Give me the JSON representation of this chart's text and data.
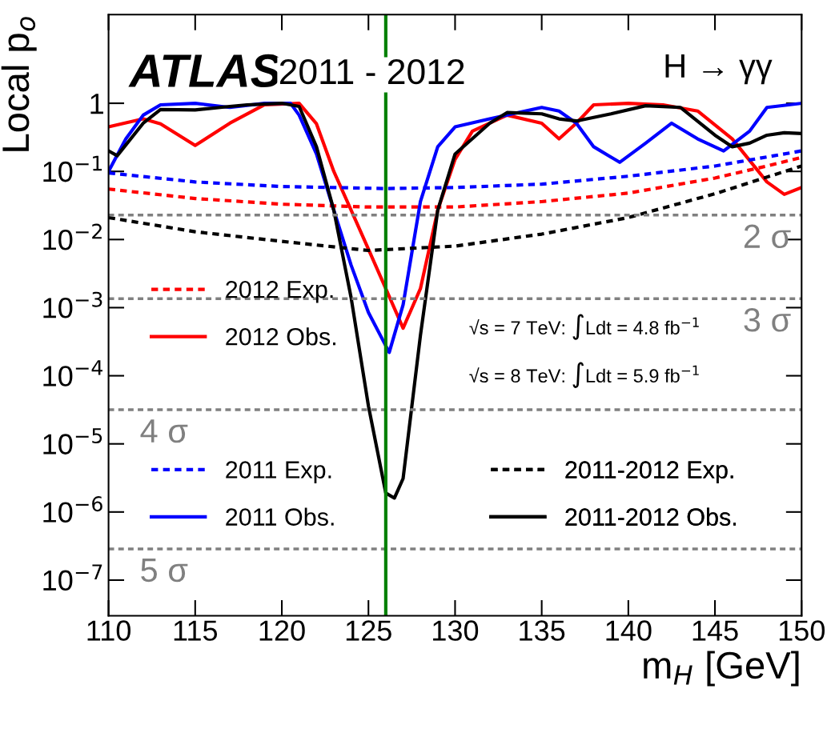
{
  "chart_data": {
    "type": "line",
    "xlabel": "m$_{H}$ [GeV]",
    "ylabel": "Local p$_{o}$",
    "annotations": [
      "ATLAS",
      "2011 - 2012",
      "H → γγ",
      "√s = 7 TeV: ∫Ldt = 4.8 fb$^{−1}$",
      "√s = 8 TeV: ∫Ldt = 5.9 fb$^{−1}$"
    ],
    "log": "y",
    "grid": false,
    "legend": "bottom",
    "marker": "none",
    "xlim": [
      110,
      150
    ],
    "xticks": [
      110,
      115,
      120,
      125,
      130,
      135,
      140,
      145,
      150
    ],
    "ylim": [
      3e-08,
      20
    ],
    "yticks": [
      1,
      {
        "value": 0.1,
        "label": "10$^{−1}$"
      },
      {
        "value": 0.01,
        "label": "10$^{−2}$"
      },
      {
        "value": 0.001,
        "label": "10$^{−3}$"
      },
      {
        "value": 0.0001,
        "label": "10$^{−4}$"
      },
      {
        "value": 1e-05,
        "label": "10$^{−5}$"
      },
      {
        "value": 1e-06,
        "label": "10$^{−6}$"
      },
      {
        "value": 1e-07,
        "label": "10$^{−7}$"
      }
    ],
    "series": [
      {
        "name": "2012 Exp.",
        "color": "#ff0000",
        "line_style": "dotted",
        "x": [
          110,
          115,
          120,
          125,
          130,
          135,
          140,
          145,
          148,
          150
        ],
        "values": [
          0.055,
          0.04,
          0.033,
          0.03,
          0.03,
          0.036,
          0.048,
          0.08,
          0.12,
          0.16
        ]
      },
      {
        "name": "2012 Obs.",
        "color": "#ff0000",
        "line_style": "solid",
        "x": [
          110,
          112,
          113,
          115,
          117,
          119,
          121,
          122,
          123,
          124,
          125,
          126,
          127,
          128,
          129,
          130,
          131,
          133,
          135,
          136,
          137,
          138,
          140,
          142,
          144,
          146,
          148,
          149,
          150
        ],
        "values": [
          0.45,
          0.59,
          0.5,
          0.24,
          0.51,
          0.95,
          1,
          0.5,
          0.1,
          0.027,
          0.0072,
          0.0019,
          0.0005,
          0.0019,
          0.027,
          0.15,
          0.39,
          0.67,
          0.51,
          0.3,
          0.51,
          0.95,
          1,
          0.95,
          0.77,
          0.3,
          0.07,
          0.046,
          0.058
        ]
      },
      {
        "name": "2011 Exp.",
        "color": "#0000ff",
        "line_style": "dotted",
        "x": [
          110,
          115,
          120,
          126,
          130,
          135,
          140,
          145,
          150
        ],
        "values": [
          0.095,
          0.07,
          0.06,
          0.056,
          0.058,
          0.065,
          0.085,
          0.12,
          0.2
        ]
      },
      {
        "name": "2011 Obs.",
        "color": "#0000ff",
        "line_style": "solid",
        "x": [
          110,
          111,
          112,
          113,
          115,
          117,
          119,
          120.5,
          121,
          122,
          123,
          124,
          125,
          126.2,
          127,
          128,
          129,
          130,
          132,
          135,
          136,
          137,
          138,
          139.5,
          141,
          142.5,
          144,
          145.5,
          147,
          148,
          150
        ],
        "values": [
          0.1,
          0.3,
          0.67,
          0.95,
          1,
          0.87,
          1,
          1,
          0.67,
          0.18,
          0.027,
          0.0042,
          0.00085,
          0.00022,
          0.0011,
          0.036,
          0.23,
          0.45,
          0.59,
          0.87,
          0.77,
          0.51,
          0.23,
          0.136,
          0.26,
          0.51,
          0.3,
          0.2,
          0.39,
          0.87,
          1
        ]
      },
      {
        "name": "2011-2012 Exp.",
        "color": "#000000",
        "line_style": "dotted",
        "x": [
          110,
          115,
          120,
          125,
          130,
          135,
          140,
          145,
          150
        ],
        "values": [
          0.021,
          0.013,
          0.0094,
          0.0069,
          0.008,
          0.012,
          0.021,
          0.047,
          0.12
        ]
      },
      {
        "name": "2011-2012 Obs.",
        "color": "#000000",
        "line_style": "solid",
        "x": [
          110,
          110.5,
          112,
          113,
          115,
          117,
          118,
          120,
          121,
          122,
          123,
          124,
          125,
          126,
          126.5,
          127,
          128,
          129,
          130,
          132,
          133,
          135,
          136,
          137,
          139,
          141,
          143,
          145,
          146,
          147,
          148,
          149,
          150
        ],
        "values": [
          0.2,
          0.17,
          0.51,
          0.81,
          0.8,
          0.9,
          0.95,
          1,
          0.9,
          0.23,
          0.027,
          0.0014,
          3.6e-05,
          1.9e-06,
          1.6e-06,
          3.1e-06,
          0.00039,
          0.027,
          0.18,
          0.51,
          0.73,
          0.7,
          0.59,
          0.55,
          0.7,
          0.92,
          0.87,
          0.34,
          0.23,
          0.26,
          0.34,
          0.37,
          0.36
        ]
      }
    ],
    "ref_lines": [
      {
        "axis": "y",
        "value": 0.0228,
        "label": "2 σ",
        "color": "#808080",
        "line_style": "dotted"
      },
      {
        "axis": "y",
        "value": 0.00135,
        "label": "3 σ",
        "color": "#808080",
        "line_style": "dotted"
      },
      {
        "axis": "y",
        "value": 3.17e-05,
        "label": "4 σ",
        "color": "#808080",
        "line_style": "dotted"
      },
      {
        "axis": "y",
        "value": 2.87e-07,
        "label": "5 σ",
        "color": "#808080",
        "line_style": "dotted"
      },
      {
        "axis": "x",
        "value": 126,
        "color": "#008000",
        "line_style": "solid"
      }
    ]
  }
}
